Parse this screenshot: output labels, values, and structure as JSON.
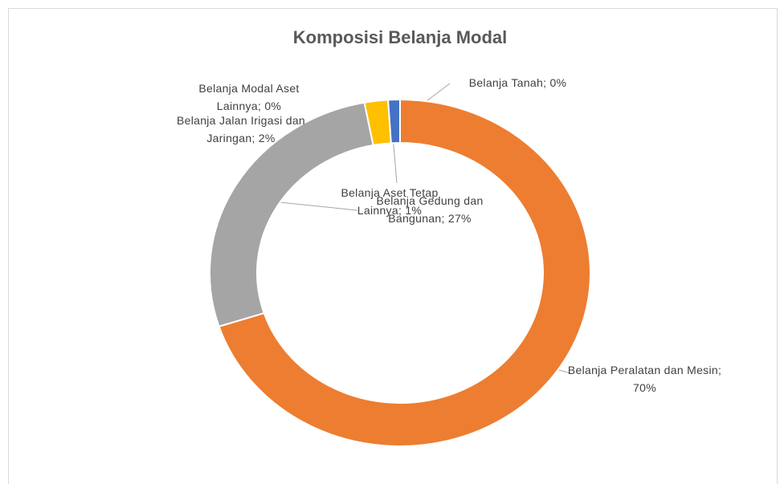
{
  "chart_data": {
    "type": "donut",
    "title": "Komposisi Belanja Modal",
    "categories": [
      "Belanja Tanah",
      "Belanja Peralatan dan Mesin",
      "Belanja Gedung dan Bangunan",
      "Belanja Jalan Irigasi dan Jaringan",
      "Belanja Aset Tetap Lainnya",
      "Belanja Modal Aset Lainnya"
    ],
    "values": [
      0,
      70,
      27,
      2,
      1,
      0
    ],
    "value_labels": [
      "0%",
      "70%",
      "27%",
      "2%",
      "1%",
      "0%"
    ],
    "label_separator": "; ",
    "colors": [
      "#5b9bd5",
      "#ed7d31",
      "#a5a5a5",
      "#ffc000",
      "#4472c4",
      "#70ad47"
    ]
  }
}
